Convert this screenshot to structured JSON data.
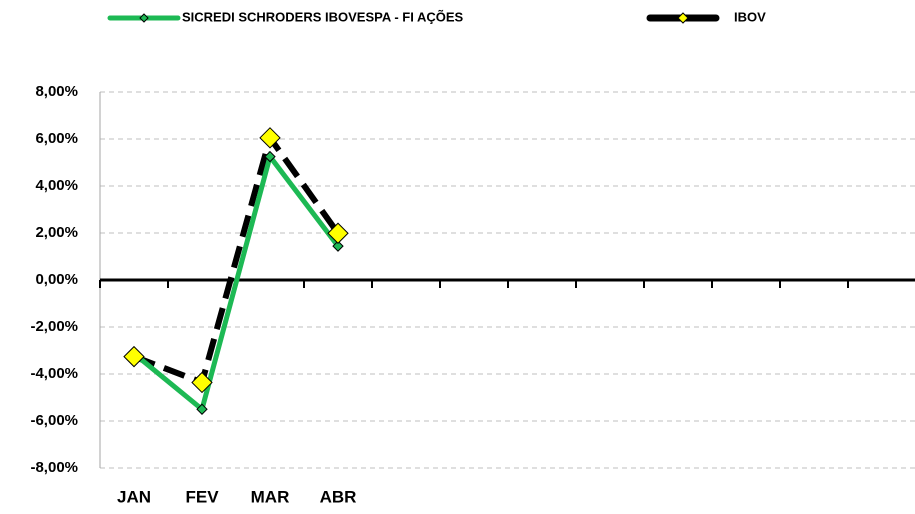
{
  "chart_data": {
    "type": "line",
    "categories": [
      "JAN",
      "FEV",
      "MAR",
      "ABR",
      null,
      null,
      null,
      null,
      null,
      null,
      null,
      null
    ],
    "series": [
      {
        "name": "SICREDI SCHRODERS IBOVESPA - FI AÇÕES",
        "color": "#1db954",
        "values": [
          -3.13,
          -5.5,
          5.25,
          1.44,
          null,
          null,
          null,
          null,
          null,
          null,
          null,
          null
        ]
      },
      {
        "name": "IBOV",
        "color": "#000000",
        "marker_color": "#ffff00",
        "values": [
          -3.26,
          -4.36,
          6.05,
          1.99,
          null,
          null,
          null,
          null,
          null,
          null,
          null,
          null
        ]
      }
    ],
    "ylim": [
      -8,
      8
    ],
    "yticks": [
      {
        "value": -8,
        "label": "-8,00%"
      },
      {
        "value": -6,
        "label": "-6,00%"
      },
      {
        "value": -4,
        "label": "-4,00%"
      },
      {
        "value": -2,
        "label": "-2,00%"
      },
      {
        "value": 0,
        "label": "0,00%"
      },
      {
        "value": 2,
        "label": "2,00%"
      },
      {
        "value": 4,
        "label": "4,00%"
      },
      {
        "value": 6,
        "label": "6,00%"
      },
      {
        "value": 8,
        "label": "8,00%"
      }
    ],
    "grid": true
  }
}
